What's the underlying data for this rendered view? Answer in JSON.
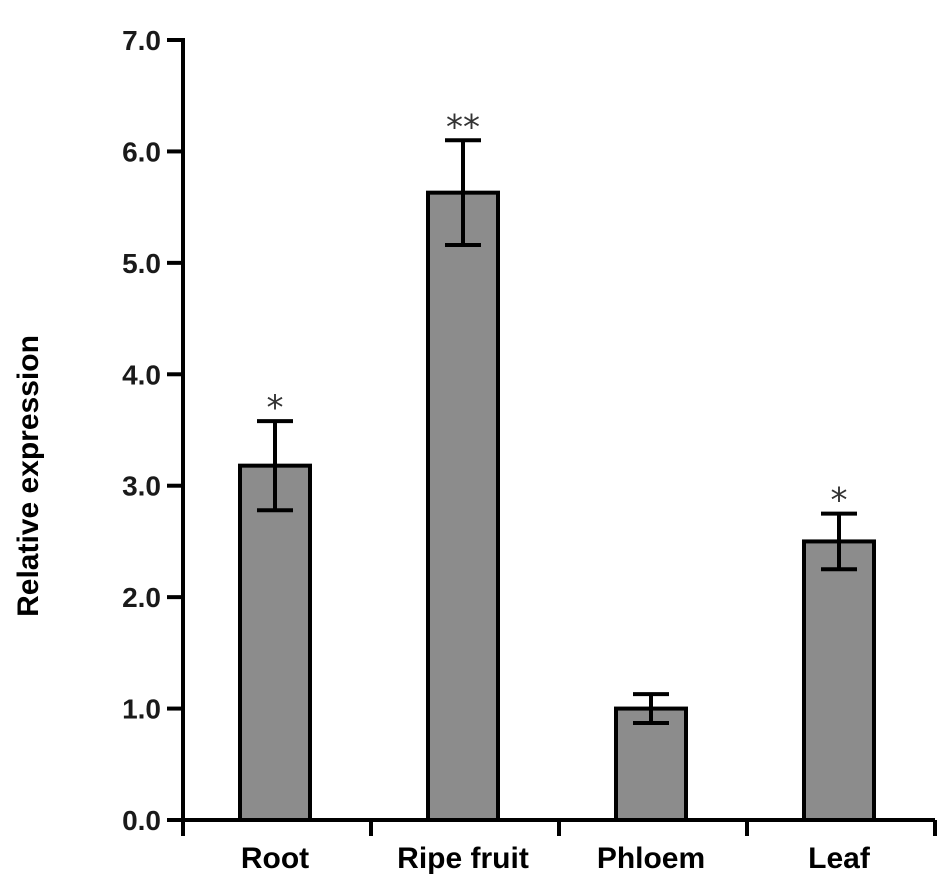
{
  "chart_data": {
    "type": "bar",
    "title": "",
    "xlabel": "",
    "ylabel": "Relative expression",
    "ylim": [
      0,
      7
    ],
    "yticks": [
      "0.0",
      "1.0",
      "2.0",
      "3.0",
      "4.0",
      "5.0",
      "6.0",
      "7.0"
    ],
    "categories": [
      "Root",
      "Ripe fruit",
      "Phloem",
      "Leaf"
    ],
    "values": [
      3.18,
      5.63,
      1.0,
      2.5
    ],
    "errors": [
      0.4,
      0.47,
      0.13,
      0.25
    ],
    "significance": [
      "*",
      "**",
      "",
      "*"
    ],
    "grid": false,
    "bar_color": "#8c8c8c"
  }
}
